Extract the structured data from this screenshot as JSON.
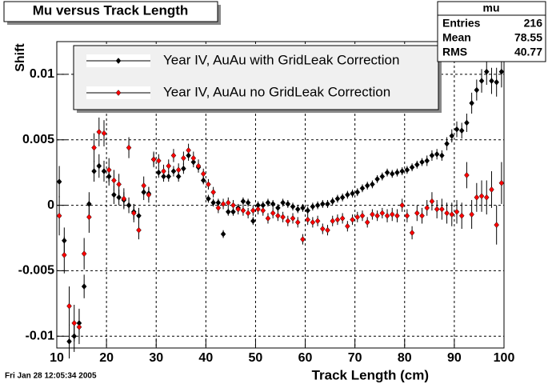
{
  "chart_data": {
    "type": "scatter",
    "title": "Mu versus Track Length",
    "x_label": "Track Length (cm)",
    "y_label": "Shift",
    "footer": "Fri Jan 28 12:05:34 2005",
    "xlim": [
      10,
      100
    ],
    "xticks": [
      10,
      20,
      30,
      40,
      50,
      60,
      70,
      80,
      90,
      100
    ],
    "ylim": [
      -0.0109,
      0.0125
    ],
    "yticks": [
      -0.01,
      -0.005,
      0,
      0.005,
      0.01
    ],
    "grid": true,
    "legend": "top",
    "stats": {
      "title": "mu",
      "rows": [
        {
          "label": "Entries",
          "value": 216
        },
        {
          "label": "Mean",
          "value": 78.55
        },
        {
          "label": "RMS",
          "value": 40.77
        }
      ]
    },
    "x": [
      10.5,
      11.5,
      12.5,
      13.5,
      14.5,
      15.5,
      16.5,
      17.5,
      18.5,
      19.5,
      20.5,
      21.5,
      22.5,
      23.5,
      24.5,
      25.5,
      26.5,
      27.5,
      28.5,
      29.5,
      30.5,
      31.5,
      32.5,
      33.5,
      34.5,
      35.5,
      36.5,
      37.5,
      38.5,
      39.5,
      40.5,
      41.5,
      42.5,
      43.5,
      44.5,
      45.5,
      46.5,
      47.5,
      48.5,
      49.5,
      50.5,
      51.5,
      52.5,
      53.5,
      54.5,
      55.5,
      56.5,
      57.5,
      58.5,
      59.5,
      60.5,
      61.5,
      62.5,
      63.5,
      64.5,
      65.5,
      66.5,
      67.5,
      68.5,
      69.5,
      70.5,
      71.5,
      72.5,
      73.5,
      74.5,
      75.5,
      76.5,
      77.5,
      78.5,
      79.5,
      80.5,
      81.5,
      82.5,
      83.5,
      84.5,
      85.5,
      86.5,
      87.5,
      88.5,
      89.5,
      90.5,
      91.5,
      92.5,
      93.5,
      94.5,
      95.5,
      96.5,
      97.5,
      98.5,
      99.5
    ],
    "series": [
      {
        "name": "Year IV, AuAu with GridLeak Correction",
        "color": "#000000",
        "values": [
          0.0018,
          -0.0027,
          -0.0104,
          -0.01,
          -0.009,
          -0.0062,
          0.0001,
          0.0026,
          0.003,
          0.0026,
          0.0022,
          0.0008,
          0.0006,
          0.0004,
          0.0,
          -0.0005,
          -0.0008,
          0.001,
          0.0009,
          0.0035,
          0.0025,
          0.0022,
          0.0022,
          0.0026,
          0.0022,
          0.0028,
          0.0038,
          0.0033,
          0.0029,
          0.0019,
          0.0005,
          0.0002,
          0.0002,
          -0.0022,
          -0.0005,
          -0.0005,
          -0.0002,
          0.0003,
          0.0002,
          -0.0012,
          0.0,
          0.0,
          0.0002,
          0.0001,
          -0.0002,
          0.0002,
          0.0001,
          -0.0001,
          -0.0003,
          -0.0002,
          -0.0004,
          -0.0001,
          0.0,
          0.0001,
          0.0001,
          0.0003,
          0.0005,
          0.0006,
          0.0008,
          0.0009,
          0.001,
          0.0013,
          0.0015,
          0.0016,
          0.002,
          0.0022,
          0.0025,
          0.0024,
          0.0025,
          0.0026,
          0.0027,
          0.0029,
          0.0031,
          0.0033,
          0.0034,
          0.0038,
          0.0039,
          0.0038,
          0.0047,
          0.0053,
          0.0058,
          0.0057,
          0.0063,
          0.0078,
          0.0088,
          0.0095,
          0.0102,
          0.0095,
          0.0094,
          0.0102
        ],
        "errors": [
          0.0012,
          0.001,
          0.0013,
          0.0012,
          0.0011,
          0.0009,
          0.0009,
          0.0008,
          0.0009,
          0.0008,
          0.0007,
          0.0007,
          0.0006,
          0.0006,
          0.0006,
          0.0006,
          0.0006,
          0.0006,
          0.0005,
          0.0005,
          0.0004,
          0.0004,
          0.0004,
          0.0004,
          0.0004,
          0.0004,
          0.0004,
          0.0004,
          0.0004,
          0.0003,
          0.0003,
          0.0003,
          0.0003,
          0.0003,
          0.0003,
          0.0003,
          0.0003,
          0.0003,
          0.0003,
          0.0003,
          0.0003,
          0.0003,
          0.0003,
          0.0003,
          0.0003,
          0.0003,
          0.0003,
          0.0003,
          0.0003,
          0.0003,
          0.0003,
          0.0003,
          0.0003,
          0.0003,
          0.0003,
          0.0003,
          0.0003,
          0.0003,
          0.0003,
          0.0003,
          0.0003,
          0.0003,
          0.0003,
          0.0003,
          0.0003,
          0.0003,
          0.0003,
          0.0003,
          0.0003,
          0.0003,
          0.0003,
          0.0003,
          0.0003,
          0.0003,
          0.0004,
          0.0004,
          0.0004,
          0.0004,
          0.0005,
          0.0005,
          0.0006,
          0.0006,
          0.0007,
          0.0008,
          0.0008,
          0.0009,
          0.001,
          0.001,
          0.0011,
          0.0012
        ]
      },
      {
        "name": "Year IV, AuAu no GridLeak Correction",
        "color": "#ff0000",
        "values": [
          -0.0008,
          -0.0038,
          -0.0077,
          -0.009,
          -0.0093,
          -0.0037,
          -0.0009,
          0.0044,
          0.0056,
          0.0055,
          0.0027,
          0.0019,
          0.0016,
          0.0005,
          0.0044,
          -0.0006,
          -0.0019,
          0.0015,
          0.0008,
          0.0035,
          0.0034,
          0.0026,
          0.003,
          0.0038,
          0.0027,
          0.0036,
          0.0042,
          0.0036,
          0.003,
          0.0024,
          0.0016,
          0.001,
          -0.0002,
          0.0001,
          0.0002,
          0.0,
          -0.0003,
          -0.0004,
          -0.0006,
          -0.0004,
          -0.0003,
          -0.0004,
          -0.001,
          -0.0006,
          -0.0008,
          -0.0009,
          -0.0012,
          -0.001,
          -0.0013,
          -0.0026,
          -0.0011,
          -0.0013,
          -0.0012,
          -0.0018,
          -0.0019,
          -0.0012,
          -0.0011,
          -0.001,
          -0.0016,
          -0.0011,
          -0.0009,
          -0.0008,
          -0.0013,
          -0.0007,
          -0.0008,
          -0.0006,
          -0.0008,
          -0.0007,
          -0.0008,
          0.0,
          -0.0008,
          -0.0021,
          -0.0006,
          -0.0008,
          -0.0002,
          0.0003,
          -0.0003,
          -0.0003,
          -0.0006,
          -0.0007,
          -0.0005,
          -0.0008,
          0.0023,
          -0.0007,
          0.0006,
          0.0007,
          0.0006,
          0.0012,
          -0.0015,
          0.0017
        ],
        "errors": [
          0.0015,
          0.0014,
          0.0015,
          0.0014,
          0.0013,
          0.0012,
          0.0012,
          0.0011,
          0.0011,
          0.001,
          0.0009,
          0.0008,
          0.0008,
          0.0008,
          0.0008,
          0.0007,
          0.0007,
          0.0007,
          0.0006,
          0.0006,
          0.0005,
          0.0005,
          0.0005,
          0.0005,
          0.0005,
          0.0005,
          0.0005,
          0.0005,
          0.0005,
          0.0004,
          0.0004,
          0.0004,
          0.0004,
          0.0004,
          0.0004,
          0.0004,
          0.0004,
          0.0004,
          0.0004,
          0.0004,
          0.0004,
          0.0004,
          0.0004,
          0.0004,
          0.0004,
          0.0004,
          0.0004,
          0.0004,
          0.0004,
          0.0004,
          0.0004,
          0.0004,
          0.0004,
          0.0004,
          0.0004,
          0.0004,
          0.0004,
          0.0004,
          0.0004,
          0.0004,
          0.0004,
          0.0004,
          0.0004,
          0.0004,
          0.0004,
          0.0004,
          0.0005,
          0.0005,
          0.0005,
          0.0005,
          0.0005,
          0.0005,
          0.0006,
          0.0006,
          0.0006,
          0.0007,
          0.0007,
          0.0008,
          0.0008,
          0.0009,
          0.0009,
          0.001,
          0.001,
          0.0011,
          0.0011,
          0.0012,
          0.0013,
          0.0014,
          0.0015,
          0.0016
        ]
      }
    ]
  }
}
